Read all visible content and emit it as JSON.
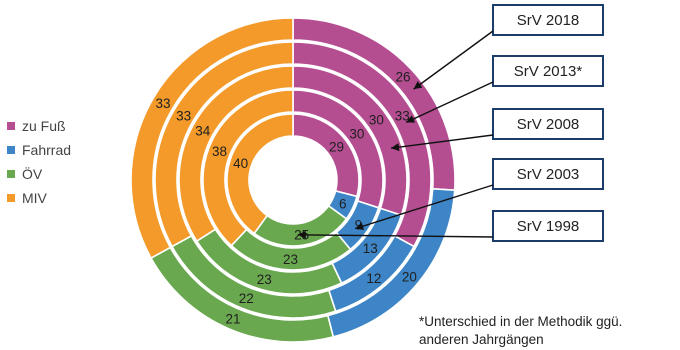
{
  "chart_data": {
    "type": "donut",
    "categories": [
      "zu Fuß",
      "Fahrrad",
      "ÖV",
      "MIV"
    ],
    "colors": {
      "zu Fuß": "#b44e91",
      "Fahrrad": "#3d85c6",
      "ÖV": "#6aa84f",
      "MIV": "#f39a2b"
    },
    "rings_outer_to_inner": [
      {
        "name": "SrV 2018",
        "values": [
          26,
          20,
          21,
          33
        ]
      },
      {
        "name": "SrV 2013*",
        "values": [
          33,
          12,
          22,
          33
        ]
      },
      {
        "name": "SrV 2008",
        "values": [
          30,
          13,
          23,
          34
        ]
      },
      {
        "name": "SrV 2003",
        "values": [
          30,
          9,
          23,
          38
        ]
      },
      {
        "name": "SrV 1998",
        "values": [
          29,
          6,
          25,
          40
        ]
      }
    ],
    "legend_placement": "left",
    "title": "",
    "unit": ""
  },
  "footnote": {
    "line1": "*Unterschied in der Methodik ggü.",
    "line2": "anderen Jahrgängen"
  }
}
